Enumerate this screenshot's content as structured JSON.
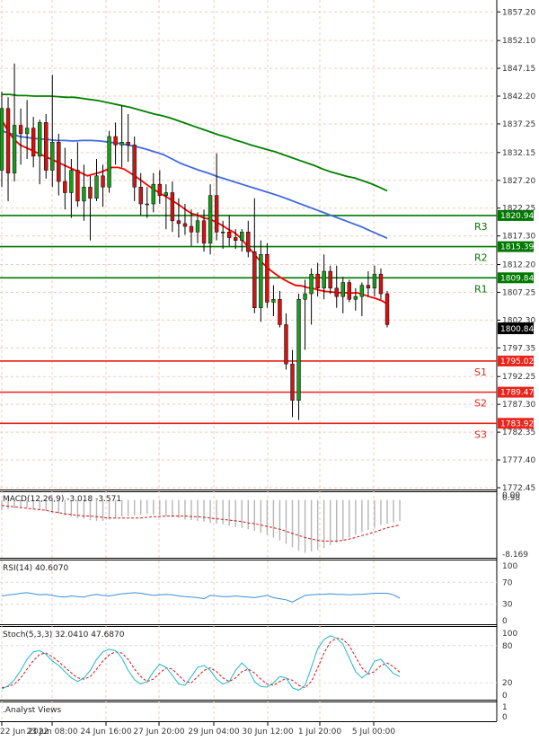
{
  "chart_data": {
    "type": "candlestick",
    "main_panel": {
      "price_ticks": [
        "1857.20",
        "1852.10",
        "1847.15",
        "1842.20",
        "1837.25",
        "1832.15",
        "1827.20",
        "1822.25",
        "1817.30",
        "1812.20",
        "1807.25",
        "1802.30",
        "1797.35",
        "1792.25",
        "1787.30",
        "1782.35",
        "1777.40",
        "1772.45"
      ],
      "ylim": [
        1772.45,
        1859.0
      ],
      "current_price": "1800.84",
      "levels": [
        {
          "name": "R3",
          "value": 1820.94,
          "value_label": "1820.94",
          "kind": "resistance"
        },
        {
          "name": "R2",
          "value": 1815.39,
          "value_label": "1815.39",
          "kind": "resistance"
        },
        {
          "name": "R1",
          "value": 1809.84,
          "value_label": "1809.84",
          "kind": "resistance"
        },
        {
          "name": "S1",
          "value": 1795.02,
          "value_label": "1795.02",
          "kind": "support"
        },
        {
          "name": "S2",
          "value": 1789.47,
          "value_label": "1789.47",
          "kind": "support"
        },
        {
          "name": "S3",
          "value": 1783.92,
          "value_label": "1783.92",
          "kind": "support"
        }
      ],
      "candles": [
        {
          "o": 1829.0,
          "h": 1843.0,
          "l": 1826.0,
          "c": 1840.0
        },
        {
          "o": 1840.0,
          "h": 1842.0,
          "l": 1823.5,
          "c": 1828.5
        },
        {
          "o": 1828.5,
          "h": 1848.0,
          "l": 1827.0,
          "c": 1837.0
        },
        {
          "o": 1837.0,
          "h": 1840.0,
          "l": 1830.0,
          "c": 1835.5
        },
        {
          "o": 1835.5,
          "h": 1841.5,
          "l": 1831.0,
          "c": 1836.5
        },
        {
          "o": 1836.5,
          "h": 1838.5,
          "l": 1829.5,
          "c": 1831.5
        },
        {
          "o": 1831.5,
          "h": 1838.0,
          "l": 1826.5,
          "c": 1837.5
        },
        {
          "o": 1837.5,
          "h": 1839.0,
          "l": 1827.5,
          "c": 1829.0
        },
        {
          "o": 1829.0,
          "h": 1846.0,
          "l": 1826.0,
          "c": 1834.0
        },
        {
          "o": 1834.0,
          "h": 1835.5,
          "l": 1824.5,
          "c": 1827.0
        },
        {
          "o": 1827.0,
          "h": 1833.0,
          "l": 1822.0,
          "c": 1825.0
        },
        {
          "o": 1825.0,
          "h": 1831.0,
          "l": 1820.5,
          "c": 1829.0
        },
        {
          "o": 1829.0,
          "h": 1834.0,
          "l": 1822.5,
          "c": 1823.5
        },
        {
          "o": 1823.5,
          "h": 1830.0,
          "l": 1820.0,
          "c": 1826.0
        },
        {
          "o": 1826.0,
          "h": 1828.0,
          "l": 1816.5,
          "c": 1824.0
        },
        {
          "o": 1824.0,
          "h": 1831.0,
          "l": 1823.5,
          "c": 1828.0
        },
        {
          "o": 1828.0,
          "h": 1830.0,
          "l": 1822.5,
          "c": 1826.0
        },
        {
          "o": 1826.0,
          "h": 1836.0,
          "l": 1825.0,
          "c": 1835.0
        },
        {
          "o": 1835.0,
          "h": 1837.5,
          "l": 1830.0,
          "c": 1833.5
        },
        {
          "o": 1833.5,
          "h": 1840.5,
          "l": 1829.5,
          "c": 1834.0
        },
        {
          "o": 1834.0,
          "h": 1839.0,
          "l": 1830.5,
          "c": 1833.5
        },
        {
          "o": 1833.5,
          "h": 1835.0,
          "l": 1823.5,
          "c": 1826.0
        },
        {
          "o": 1826.0,
          "h": 1828.5,
          "l": 1821.0,
          "c": 1823.0
        },
        {
          "o": 1823.0,
          "h": 1826.0,
          "l": 1820.5,
          "c": 1823.0
        },
        {
          "o": 1823.0,
          "h": 1828.5,
          "l": 1821.5,
          "c": 1826.5
        },
        {
          "o": 1826.5,
          "h": 1829.0,
          "l": 1823.0,
          "c": 1824.5
        },
        {
          "o": 1824.5,
          "h": 1826.5,
          "l": 1818.5,
          "c": 1825.0
        },
        {
          "o": 1825.0,
          "h": 1827.0,
          "l": 1818.0,
          "c": 1820.0
        },
        {
          "o": 1820.0,
          "h": 1824.0,
          "l": 1817.0,
          "c": 1819.5
        },
        {
          "o": 1819.5,
          "h": 1823.0,
          "l": 1817.5,
          "c": 1819.0
        },
        {
          "o": 1819.0,
          "h": 1822.0,
          "l": 1815.5,
          "c": 1818.0
        },
        {
          "o": 1818.0,
          "h": 1821.5,
          "l": 1816.0,
          "c": 1820.0
        },
        {
          "o": 1820.0,
          "h": 1822.0,
          "l": 1814.5,
          "c": 1816.0
        },
        {
          "o": 1816.0,
          "h": 1826.5,
          "l": 1814.0,
          "c": 1824.5
        },
        {
          "o": 1824.5,
          "h": 1832.0,
          "l": 1816.5,
          "c": 1818.0
        },
        {
          "o": 1818.0,
          "h": 1820.0,
          "l": 1815.0,
          "c": 1818.0
        },
        {
          "o": 1818.0,
          "h": 1821.0,
          "l": 1815.5,
          "c": 1817.0
        },
        {
          "o": 1817.0,
          "h": 1818.5,
          "l": 1815.0,
          "c": 1816.5
        },
        {
          "o": 1816.5,
          "h": 1818.5,
          "l": 1814.5,
          "c": 1818.0
        },
        {
          "o": 1818.0,
          "h": 1820.0,
          "l": 1813.5,
          "c": 1814.5
        },
        {
          "o": 1814.5,
          "h": 1824.0,
          "l": 1803.5,
          "c": 1804.5
        },
        {
          "o": 1804.5,
          "h": 1816.5,
          "l": 1802.0,
          "c": 1814.0
        },
        {
          "o": 1814.0,
          "h": 1816.0,
          "l": 1804.5,
          "c": 1805.5
        },
        {
          "o": 1805.5,
          "h": 1808.5,
          "l": 1803.0,
          "c": 1806.0
        },
        {
          "o": 1806.0,
          "h": 1807.5,
          "l": 1801.0,
          "c": 1801.5
        },
        {
          "o": 1801.5,
          "h": 1803.5,
          "l": 1793.5,
          "c": 1794.5
        },
        {
          "o": 1794.5,
          "h": 1797.0,
          "l": 1785.0,
          "c": 1788.0
        },
        {
          "o": 1788.0,
          "h": 1807.0,
          "l": 1784.5,
          "c": 1806.0
        },
        {
          "o": 1806.0,
          "h": 1809.5,
          "l": 1797.0,
          "c": 1807.0
        },
        {
          "o": 1807.0,
          "h": 1811.5,
          "l": 1801.5,
          "c": 1810.5
        },
        {
          "o": 1810.5,
          "h": 1812.5,
          "l": 1806.5,
          "c": 1808.0
        },
        {
          "o": 1808.0,
          "h": 1814.0,
          "l": 1806.0,
          "c": 1811.0
        },
        {
          "o": 1811.0,
          "h": 1812.0,
          "l": 1807.0,
          "c": 1808.0
        },
        {
          "o": 1808.0,
          "h": 1812.0,
          "l": 1804.5,
          "c": 1806.5
        },
        {
          "o": 1806.5,
          "h": 1810.0,
          "l": 1803.5,
          "c": 1809.0
        },
        {
          "o": 1809.0,
          "h": 1809.5,
          "l": 1805.5,
          "c": 1806.0
        },
        {
          "o": 1806.0,
          "h": 1808.0,
          "l": 1804.0,
          "c": 1806.5
        },
        {
          "o": 1806.5,
          "h": 1809.0,
          "l": 1803.0,
          "c": 1808.5
        },
        {
          "o": 1808.5,
          "h": 1811.0,
          "l": 1806.5,
          "c": 1808.0
        },
        {
          "o": 1808.0,
          "h": 1812.0,
          "l": 1806.5,
          "c": 1810.5
        },
        {
          "o": 1810.5,
          "h": 1811.5,
          "l": 1806.0,
          "c": 1807.0
        },
        {
          "o": 1807.0,
          "h": 1807.5,
          "l": 1801.0,
          "c": 1801.5
        }
      ],
      "moving_averages": [
        {
          "color": "#008000",
          "values": [
            1842.5,
            1842.5,
            1842.3,
            1842.3,
            1842.2,
            1842.2,
            1842.2,
            1842.1,
            1842.0,
            1842.0,
            1841.8,
            1841.6,
            1841.4,
            1841.1,
            1840.8,
            1840.5,
            1840.2,
            1839.8,
            1839.4,
            1839.0,
            1838.7,
            1838.3,
            1837.8,
            1837.3,
            1836.8,
            1836.3,
            1835.8,
            1835.3,
            1834.9,
            1834.4,
            1834.0,
            1833.5,
            1833.1,
            1832.7,
            1832.3,
            1831.8,
            1831.3,
            1830.8,
            1830.3,
            1829.8,
            1829.2,
            1828.7,
            1828.3,
            1827.9,
            1827.6,
            1827.1,
            1826.6,
            1826.0,
            1825.3
          ]
        },
        {
          "color": "#4169e1",
          "values": [
            1836.0,
            1835.5,
            1835.0,
            1834.8,
            1834.6,
            1834.5,
            1834.3,
            1834.3,
            1834.2,
            1834.3,
            1834.3,
            1834.2,
            1834.0,
            1833.8,
            1833.5,
            1833.2,
            1832.8,
            1832.3,
            1831.8,
            1831.0,
            1830.2,
            1829.6,
            1829.0,
            1828.5,
            1827.9,
            1827.4,
            1826.9,
            1826.4,
            1825.9,
            1825.4,
            1824.9,
            1824.4,
            1823.8,
            1823.2,
            1822.6,
            1822.0,
            1821.4,
            1820.8,
            1820.2,
            1819.6,
            1819.0,
            1818.3,
            1817.6,
            1816.9
          ]
        },
        {
          "color": "#ff0000",
          "values": [
            1838.0,
            1836.0,
            1834.5,
            1833.5,
            1833.0,
            1832.5,
            1832.0,
            1831.5,
            1831.0,
            1830.5,
            1830.0,
            1829.5,
            1829.0,
            1828.5,
            1828.0,
            1828.3,
            1828.6,
            1829.0,
            1829.5,
            1829.5,
            1829.2,
            1828.5,
            1827.8,
            1827.0,
            1826.2,
            1825.5,
            1824.8,
            1824.2,
            1823.5,
            1822.8,
            1822.0,
            1821.3,
            1821.0,
            1820.5,
            1820.3,
            1819.8,
            1819.2,
            1818.5,
            1817.9,
            1817.0,
            1815.7,
            1814.4,
            1813.1,
            1812.1,
            1811.1,
            1810.3,
            1809.6,
            1809.0,
            1808.5,
            1808.4,
            1808.1,
            1807.9,
            1807.6,
            1807.4,
            1807.3,
            1807.2,
            1807.2,
            1807.1,
            1807.2,
            1806.9,
            1806.5,
            1806.2,
            1805.8,
            1805.2
          ]
        }
      ]
    },
    "macd_panel": {
      "label": "MACD(12,26,9) -3.018 -3.571",
      "axis_top": "0.98",
      "axis_top2": "0.00",
      "axis_bottom": "-8.169",
      "ylim": [
        -8.169,
        0.98
      ],
      "histogram": [
        -1.5,
        -1.3,
        -1.2,
        -1.0,
        -1.1,
        -1.3,
        -1.4,
        -1.6,
        -1.8,
        -2.0,
        -2.2,
        -2.4,
        -2.6,
        -2.7,
        -2.9,
        -3.0,
        -3.0,
        -2.8,
        -2.6,
        -2.4,
        -2.3,
        -2.2,
        -2.1,
        -2.0,
        -2.1,
        -2.2,
        -2.3,
        -2.5,
        -2.6,
        -2.8,
        -2.9,
        -3.0,
        -3.1,
        -3.3,
        -3.4,
        -3.5,
        -3.7,
        -3.9,
        -4.0,
        -4.2,
        -4.4,
        -4.7,
        -5.0,
        -5.4,
        -5.8,
        -6.3,
        -6.8,
        -7.3,
        -7.6,
        -7.4,
        -7.2,
        -6.9,
        -6.5,
        -6.1,
        -5.8,
        -5.4,
        -5.0,
        -4.6,
        -4.3,
        -4.0,
        -3.6,
        -3.4,
        -3.2,
        -3.0
      ],
      "signal": [
        -0.8,
        -0.9,
        -1.0,
        -1.1,
        -1.2,
        -1.3,
        -1.4,
        -1.5,
        -1.7,
        -1.8,
        -2.0,
        -2.1,
        -2.2,
        -2.3,
        -2.3,
        -2.4,
        -2.5,
        -2.6,
        -2.6,
        -2.6,
        -2.6,
        -2.6,
        -2.6,
        -2.5,
        -2.4,
        -2.4,
        -2.3,
        -2.3,
        -2.3,
        -2.3,
        -2.4,
        -2.4,
        -2.5,
        -2.6,
        -2.7,
        -2.8,
        -2.9,
        -3.0,
        -3.1,
        -3.3,
        -3.4,
        -3.6,
        -3.8,
        -4.0,
        -4.2,
        -4.5,
        -4.8,
        -5.1,
        -5.4,
        -5.6,
        -5.8,
        -5.9,
        -5.9,
        -5.9,
        -5.8,
        -5.6,
        -5.4,
        -5.1,
        -4.9,
        -4.6,
        -4.3,
        -4.0,
        -3.8,
        -3.6
      ]
    },
    "rsi_panel": {
      "label": "RSI(14) 40.6070",
      "ticks": [
        "100",
        "70",
        "30",
        "0"
      ],
      "ylim": [
        0,
        100
      ],
      "values": [
        45,
        47,
        48,
        50,
        51,
        49,
        47,
        48,
        46,
        44,
        43,
        45,
        44,
        43,
        46,
        48,
        46,
        45,
        47,
        49,
        50,
        51,
        50,
        48,
        46,
        47,
        48,
        47,
        45,
        44,
        43,
        42,
        40,
        46,
        45,
        44,
        44,
        45,
        44,
        43,
        42,
        44,
        46,
        42,
        40,
        38,
        34,
        40,
        46,
        47,
        48,
        48,
        49,
        48,
        48,
        47,
        48,
        48,
        49,
        50,
        50,
        50,
        47,
        41
      ]
    },
    "stoch_panel": {
      "label": "Stoch(5,3,3) 32.0410 47.6870",
      "ticks": [
        "100",
        "80",
        "20",
        "0"
      ],
      "ylim": [
        0,
        100
      ],
      "main": [
        10,
        15,
        25,
        40,
        58,
        70,
        72,
        66,
        55,
        48,
        38,
        28,
        22,
        28,
        40,
        58,
        70,
        74,
        72,
        60,
        40,
        25,
        18,
        22,
        38,
        50,
        45,
        32,
        18,
        16,
        30,
        45,
        48,
        40,
        26,
        18,
        22,
        40,
        52,
        42,
        22,
        14,
        13,
        20,
        30,
        28,
        12,
        8,
        16,
        45,
        75,
        90,
        96,
        92,
        82,
        60,
        38,
        28,
        36,
        55,
        58,
        46,
        35,
        30
      ],
      "signal": [
        12,
        14,
        18,
        28,
        42,
        56,
        66,
        68,
        62,
        54,
        45,
        36,
        28,
        26,
        30,
        42,
        55,
        65,
        70,
        68,
        58,
        42,
        30,
        22,
        26,
        36,
        44,
        42,
        32,
        22,
        20,
        30,
        40,
        44,
        38,
        28,
        22,
        28,
        38,
        42,
        36,
        26,
        18,
        16,
        22,
        27,
        24,
        16,
        12,
        22,
        44,
        68,
        86,
        92,
        90,
        80,
        62,
        44,
        34,
        38,
        48,
        52,
        46,
        37
      ]
    },
    "analyst_panel": {
      "label": ".Analyst Views",
      "ticks": [
        "1",
        "0"
      ]
    },
    "x_ticks": [
      "22 Jun 2022",
      "23 Jun 08:00",
      "24 Jun 16:00",
      "27 Jun 20:00",
      "29 Jun 04:00",
      "30 Jun 12:00",
      "1 Jul 20:00",
      "5 Jul 00:00"
    ]
  }
}
